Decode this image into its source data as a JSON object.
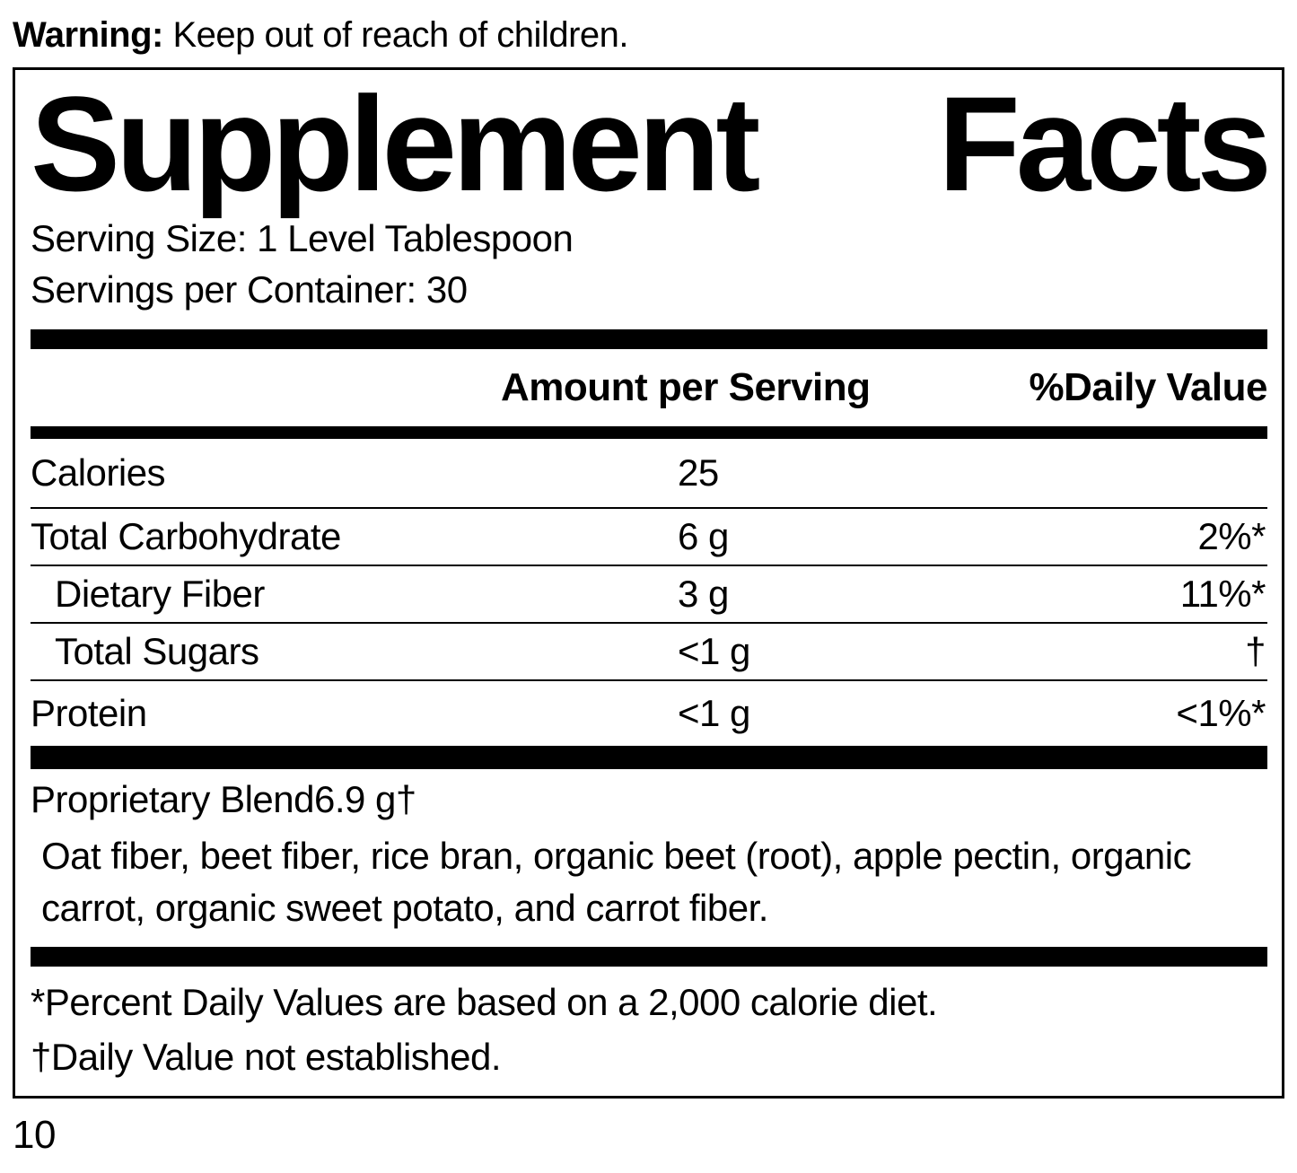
{
  "warning": {
    "label": "Warning:",
    "text": " Keep out of reach of children."
  },
  "panel": {
    "title_word_1": "Supplement",
    "title_word_2": "Facts",
    "serving_size": "Serving Size: 1 Level Tablespoon",
    "servings_per_container": "Servings per Container: 30",
    "columns": {
      "amount": "Amount per Serving",
      "daily_value": "%Daily Value"
    },
    "rows": [
      {
        "label": "Calories",
        "amount": "25",
        "dv": ""
      },
      {
        "label": "Total Carbohydrate",
        "amount": "6 g",
        "dv": "2%*"
      },
      {
        "label": "Dietary Fiber",
        "amount": "3 g",
        "dv": "11%*"
      },
      {
        "label": "Total Sugars",
        "amount": "<1 g",
        "dv": "†"
      },
      {
        "label": "Protein",
        "amount": "<1 g",
        "dv": "<1%*"
      }
    ],
    "blend": {
      "label": "Proprietary Blend",
      "amount": "6.9 g",
      "dv": "†",
      "description": "Oat fiber, beet fiber, rice bran, organic beet (root), apple pectin, organic carrot, organic sweet potato, and carrot fiber."
    },
    "footnotes": [
      "*Percent Daily Values are based on a 2,000 calorie diet.",
      "†Daily Value not established."
    ]
  },
  "page_number": "10",
  "colors": {
    "ink": "#000000",
    "background": "#ffffff"
  }
}
